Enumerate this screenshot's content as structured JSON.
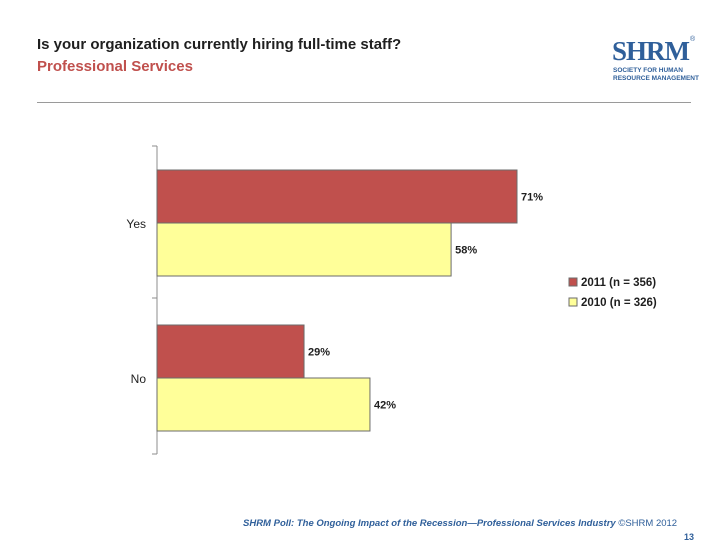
{
  "header": {
    "title": "Is your organization currently hiring full-time staff?",
    "subtitle": "Professional Services"
  },
  "logo": {
    "text": "SHRM",
    "registered": "®",
    "line1": "SOCIETY FOR HUMAN",
    "line2": "RESOURCE MANAGEMENT"
  },
  "footer": {
    "text": "SHRM Poll: The Ongoing Impact of the Recession—Professional Services Industry",
    "copyright": "©SHRM 2012",
    "page": "13"
  },
  "colors": {
    "series_2011": "#c0504d",
    "series_2010": "#ffff99",
    "title": "#1f1f1f",
    "subtitle": "#c0504d",
    "footer": "#2f5f9a"
  },
  "chart_data": {
    "type": "bar",
    "orientation": "horizontal",
    "title": "Is your organization currently hiring full-time staff?",
    "categories": [
      "Yes",
      "No"
    ],
    "series": [
      {
        "name": "2011 (n = 356)",
        "values": [
          71,
          29
        ],
        "labels": [
          "71%",
          "29%"
        ]
      },
      {
        "name": "2010 (n = 326)",
        "values": [
          58,
          42
        ],
        "labels": [
          "58%",
          "42%"
        ]
      }
    ],
    "xlim": [
      0,
      100
    ],
    "unit": "%",
    "grid": false,
    "legend": "right"
  }
}
